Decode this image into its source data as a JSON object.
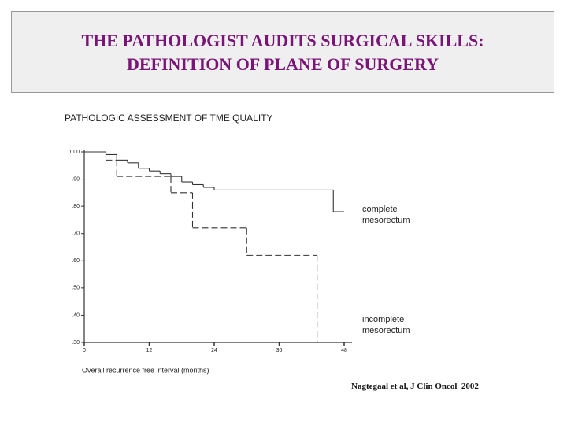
{
  "header": {
    "title_lines": [
      "THE PATHOLOGIST AUDITS SURGICAL SKILLS:",
      "DEFINITION OF PLANE OF SURGERY"
    ]
  },
  "chart_data": {
    "type": "step-line",
    "title": "PATHOLOGIC ASSESSMENT OF TME QUALITY",
    "x_label": "Overall recurrence free interval (months)",
    "xlim": [
      0,
      48
    ],
    "xticks": [
      0,
      12,
      24,
      36,
      48
    ],
    "ylim": [
      0.3,
      1.0
    ],
    "yticks": [
      {
        "value": 1.0,
        "label": "1.00"
      },
      {
        "value": 0.9,
        "label": ".90"
      },
      {
        "value": 0.8,
        "label": ".80"
      },
      {
        "value": 0.7,
        "label": ".70"
      },
      {
        "value": 0.6,
        "label": ".60"
      },
      {
        "value": 0.5,
        "label": ".50"
      },
      {
        "value": 0.4,
        "label": ".40"
      },
      {
        "value": 0.3,
        "label": ".30"
      }
    ],
    "series": [
      {
        "name": "complete mesorectum",
        "color": "#333333",
        "dashed": false,
        "x": [
          0,
          4,
          6,
          8,
          10,
          12,
          14,
          16,
          18,
          20,
          22,
          24,
          46,
          48
        ],
        "values": [
          1.0,
          0.99,
          0.97,
          0.96,
          0.94,
          0.93,
          0.92,
          0.91,
          0.89,
          0.88,
          0.87,
          0.86,
          0.78,
          0.78
        ]
      },
      {
        "name": "incomplete mesorectum",
        "color": "#333333",
        "dashed": true,
        "x": [
          0,
          4,
          6,
          16,
          20,
          30,
          43,
          48
        ],
        "values": [
          1.0,
          0.97,
          0.91,
          0.85,
          0.72,
          0.62,
          0.3,
          0.3
        ]
      }
    ]
  },
  "citation": "Nagtegaal et al, J Clin Oncol  2002"
}
